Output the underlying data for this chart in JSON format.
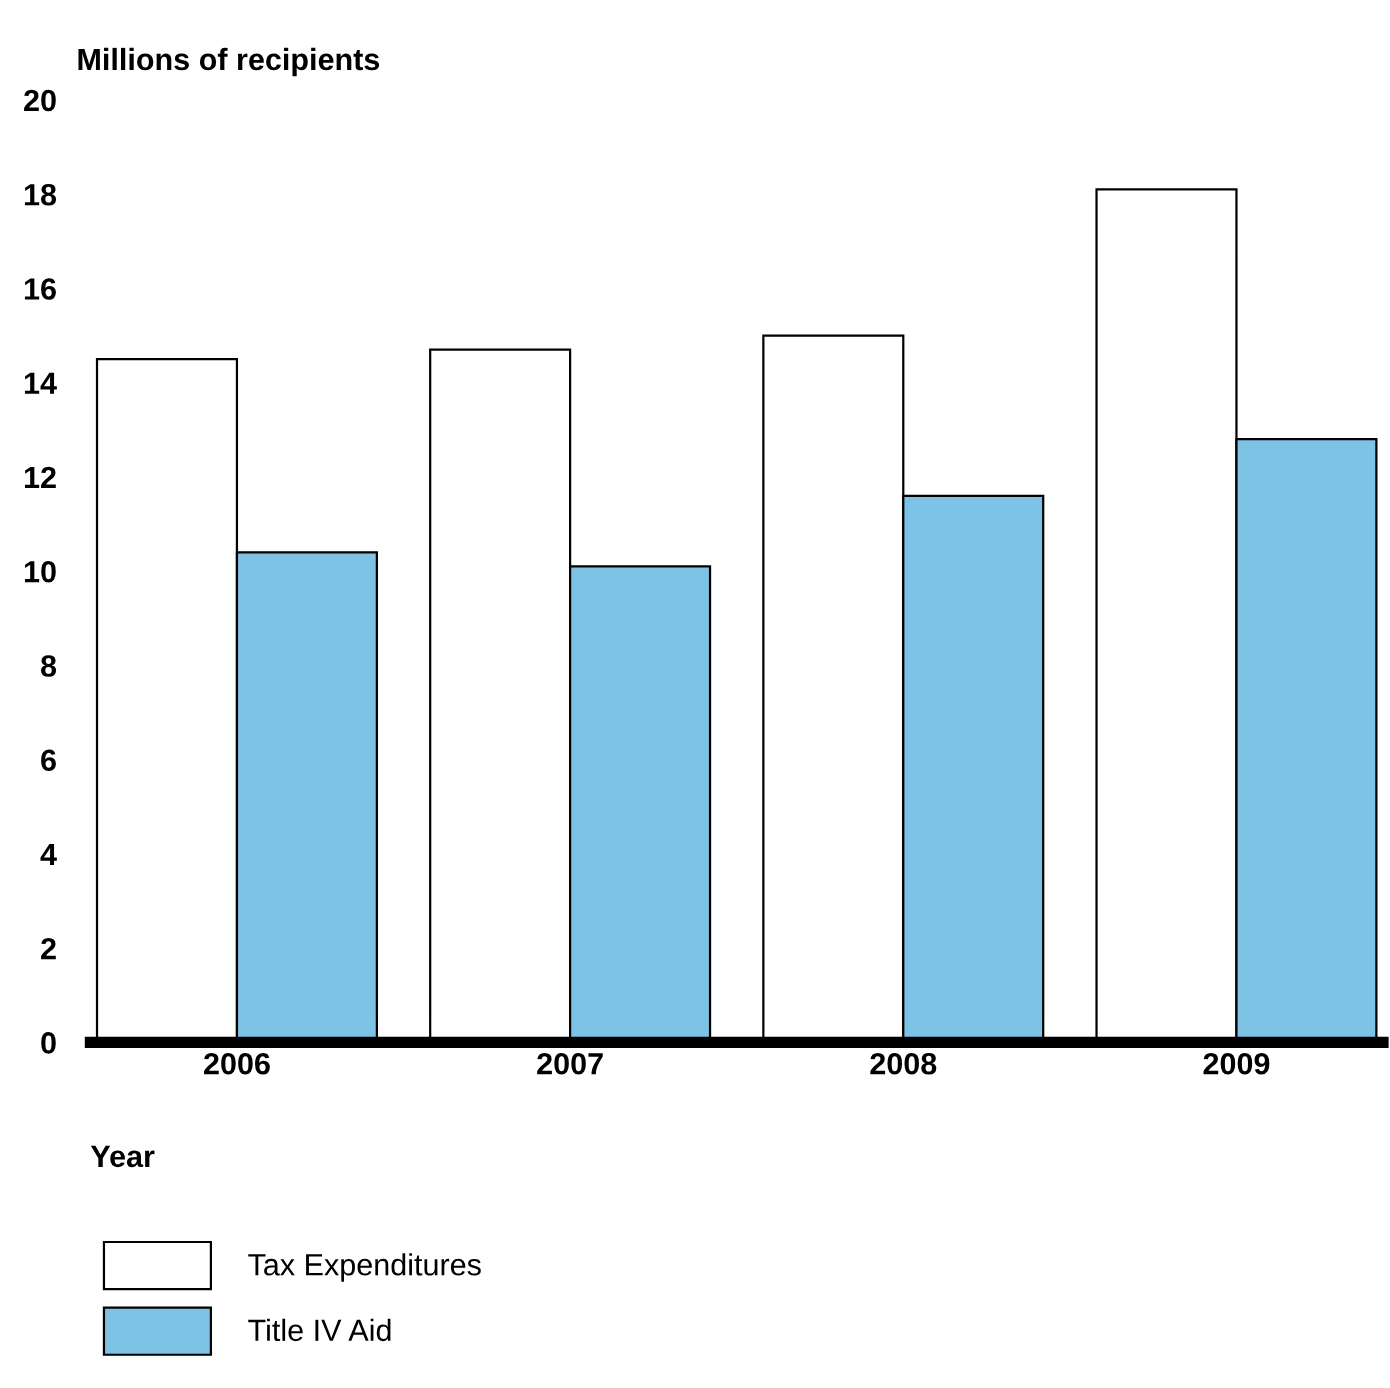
{
  "chart_data": {
    "type": "bar",
    "ylabel": "Millions of recipients",
    "xlabel": "Year",
    "categories": [
      "2006",
      "2007",
      "2008",
      "2009"
    ],
    "series": [
      {
        "name": "Tax Expenditures",
        "color": "#ffffff",
        "values": [
          14.5,
          14.7,
          15.0,
          18.1
        ]
      },
      {
        "name": "Title IV Aid",
        "color": "#7cc3e6",
        "values": [
          10.4,
          10.1,
          11.6,
          12.8
        ]
      }
    ],
    "ylim": [
      0,
      20
    ],
    "yticks": [
      0,
      2,
      4,
      6,
      8,
      10,
      12,
      14,
      16,
      18,
      20
    ],
    "grid": false,
    "legend": "bottom left"
  }
}
